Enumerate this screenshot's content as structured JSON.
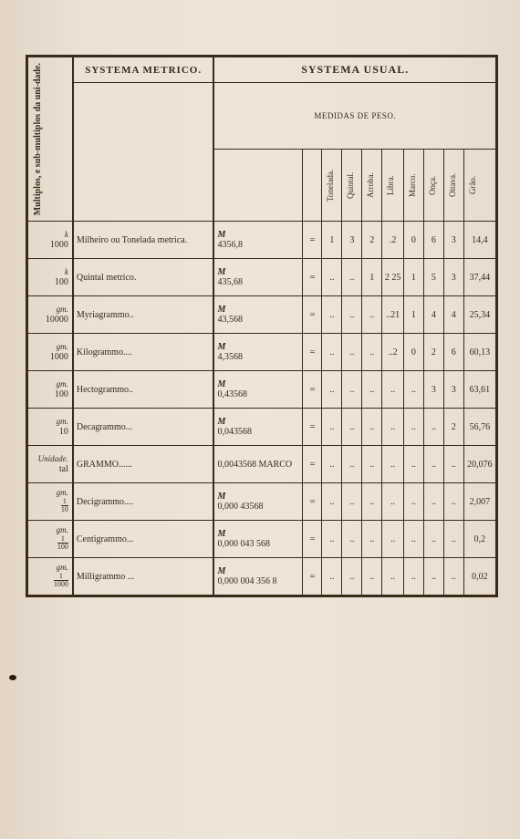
{
  "headers": {
    "left_rot": "Multiplos, e sub-multiplos da uni-dade.",
    "metrico": "SYSTEMA METRICO.",
    "usual": "SYSTEMA USUAL.",
    "medidas": "MEDIDAS DE PESO."
  },
  "usual_cols": [
    "Tonelada.",
    "Quintal.",
    "Arroba.",
    "Libra.",
    "Marco.",
    "Onça.",
    "Oitava.",
    "Grão."
  ],
  "rows": [
    {
      "sup": "k",
      "mult": "1000",
      "name": "Milheiro ou Tonelada metrica.",
      "m": "M",
      "val": "4356,8",
      "eq": "=",
      "c": [
        "1",
        "3",
        "2",
        ".2",
        "0",
        "6",
        "3",
        "14,4"
      ]
    },
    {
      "sup": "k",
      "mult": "100",
      "name": "Quintal metrico.",
      "m": "M",
      "val": "435,68",
      "eq": "=",
      "c": [
        "..",
        "..",
        "1",
        "2 25",
        "1",
        "5",
        "3",
        "37,44"
      ]
    },
    {
      "sup": "gm.",
      "mult": "10000",
      "name": "Myriagrammo..",
      "m": "M",
      "val": "43,568",
      "eq": "=",
      "c": [
        "..",
        "..",
        "..",
        "..21",
        "1",
        "4",
        "4",
        "25,34"
      ]
    },
    {
      "sup": "gm.",
      "mult": "1000",
      "name": "Kilogrammo....",
      "m": "M",
      "val": "4,3568",
      "eq": "=",
      "c": [
        "..",
        "..",
        "..",
        "..2",
        "0",
        "2",
        "6",
        "60,13"
      ]
    },
    {
      "sup": "gm.",
      "mult": "100",
      "name": "Hectogrammo..",
      "m": "M",
      "val": "0,43568",
      "eq": "=",
      "c": [
        "..",
        "..",
        "..",
        "..",
        "..",
        "3",
        "3",
        "63,61"
      ]
    },
    {
      "sup": "gm.",
      "mult": "10",
      "name": "Decagrammo...",
      "m": "M",
      "val": "0,043568",
      "eq": "=",
      "c": [
        "..",
        "..",
        "..",
        "..",
        "..",
        "..",
        "2",
        "56,76"
      ]
    },
    {
      "sup": "Unidade.",
      "mult": "tal",
      "name": "GRAMMO......",
      "m": "",
      "val": "0,0043568 MARCO",
      "eq": "=",
      "c": [
        "..",
        "..",
        "..",
        "..",
        "..",
        "..",
        "..",
        "20,076"
      ]
    },
    {
      "sup": "gm.",
      "mult": "1/10",
      "name": "Decigrammo....",
      "m": "M",
      "val": "0,000 43568",
      "eq": "=",
      "c": [
        "..",
        "..",
        "..",
        "..",
        "..",
        "..",
        "..",
        "2,007"
      ]
    },
    {
      "sup": "gm.",
      "mult": "1/100",
      "name": "Centigrammo...",
      "m": "M",
      "val": "0,000 043 568",
      "eq": "=",
      "c": [
        "..",
        "..",
        "..",
        "..",
        "..",
        "..",
        "..",
        "0,2"
      ]
    },
    {
      "sup": "gm.",
      "mult": "1/1000",
      "name": "Milligrammo ...",
      "m": "M",
      "val": "0,000 004 356 8",
      "eq": "=",
      "c": [
        "..",
        "..",
        "..",
        "..",
        "..",
        "..",
        "..",
        "0,02"
      ]
    }
  ]
}
